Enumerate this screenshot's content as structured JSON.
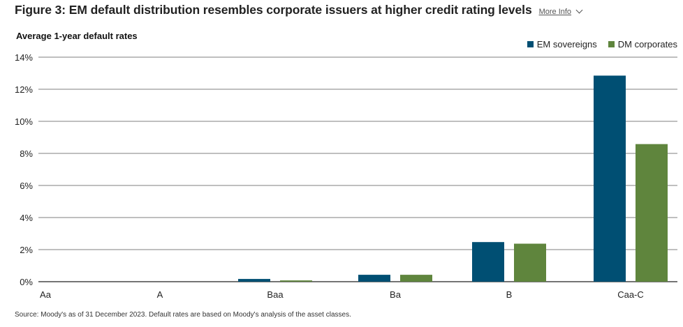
{
  "header": {
    "title": "Figure 3: EM default distribution resembles corporate issuers at higher credit rating levels",
    "more_info": "More Info"
  },
  "colors": {
    "em": "#004f73",
    "dm": "#5f853d",
    "grid": "#333333",
    "text": "#222222"
  },
  "chart_data": {
    "type": "bar",
    "title": "",
    "ylabel": "Average 1-year default rates",
    "xlabel": "",
    "categories": [
      "Aa",
      "A",
      "Baa",
      "Ba",
      "B",
      "Caa-C"
    ],
    "series": [
      {
        "name": "EM sovereigns",
        "values": [
          0.0,
          0.0,
          0.17,
          0.43,
          2.47,
          12.85
        ]
      },
      {
        "name": "DM corporates",
        "values": [
          0.0,
          0.0,
          0.08,
          0.43,
          2.37,
          8.58
        ]
      }
    ],
    "ylim": [
      0,
      14
    ],
    "yticks": [
      "0%",
      "2%",
      "4%",
      "6%",
      "8%",
      "10%",
      "12%",
      "14%"
    ],
    "ytick_values": [
      0,
      2,
      4,
      6,
      8,
      10,
      12,
      14
    ],
    "grid": true,
    "legend_position": "top-right"
  },
  "footer": {
    "source": "Source: Moody's as of 31 December 2023. Default rates are based on Moody's analysis of the asset classes."
  }
}
